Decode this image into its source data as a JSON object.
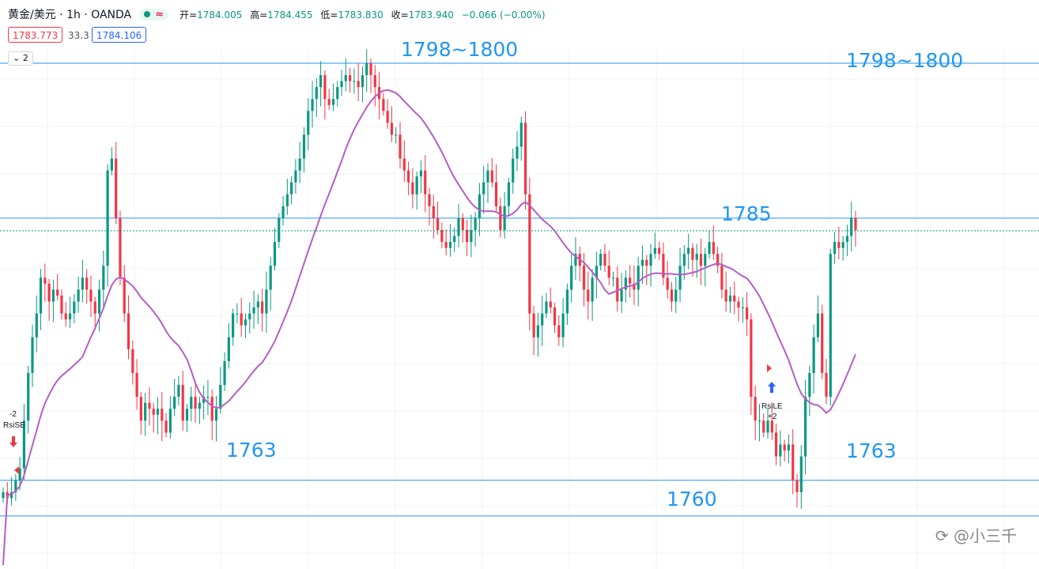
{
  "header": {
    "symbol": "黄金/美元 · 1h · OANDA",
    "wave_icon": "≈",
    "open_label": "开",
    "open": "1784.005",
    "high_label": "高",
    "high": "1784.455",
    "low_label": "低",
    "low": "1783.830",
    "close_label": "收",
    "close": "1783.940",
    "change": "−0.066 (−0.00%)"
  },
  "quote": {
    "sell": "1783.773",
    "spread": "33.3",
    "buy": "1784.106"
  },
  "indicator_toggle": {
    "count": "2"
  },
  "watermark": "@小三千",
  "colors": {
    "up": "#089981",
    "down": "#f23645",
    "ma": "#b45ec6",
    "level": "#2196f3"
  },
  "chart_data": {
    "type": "candlestick",
    "levels": [
      {
        "value": 1798,
        "label": "1798~1800"
      },
      {
        "value": 1785,
        "label": "1785"
      },
      {
        "value": 1763,
        "label": "1763"
      },
      {
        "value": 1760,
        "label": "1760"
      }
    ],
    "annotations": [
      {
        "label": "1798~1800",
        "level": 1798,
        "position": "top-center"
      },
      {
        "label": "1798~1800",
        "level": 1798,
        "position": "top-right"
      },
      {
        "label": "1785",
        "level": 1785,
        "position": "right"
      },
      {
        "label": "1763",
        "level": 1763,
        "position": "left"
      },
      {
        "label": "1763",
        "level": 1763,
        "position": "right"
      },
      {
        "label": "1760",
        "level": 1760,
        "position": "bottom-right"
      }
    ],
    "signals": [
      {
        "label": "RsiSE",
        "qty": "-2",
        "type": "sell"
      },
      {
        "label": "RsiLE",
        "qty": "+2",
        "type": "buy"
      }
    ],
    "last_price": 1783.94,
    "close_series": [
      1762,
      1761.5,
      1762,
      1763,
      1764,
      1768,
      1772,
      1775,
      1777,
      1780,
      1779.5,
      1778,
      1779,
      1778.5,
      1777,
      1776.5,
      1777,
      1778,
      1779,
      1780,
      1779,
      1778,
      1777,
      1779,
      1781,
      1789,
      1790,
      1785,
      1780,
      1777,
      1774,
      1772,
      1770,
      1768,
      1769.5,
      1769,
      1768.5,
      1769,
      1768,
      1767,
      1769,
      1770,
      1771,
      1768,
      1769,
      1770,
      1769,
      1769.5,
      1770,
      1770,
      1768,
      1769,
      1771,
      1773,
      1775,
      1777,
      1777,
      1776,
      1776.5,
      1777,
      1777.5,
      1778,
      1777,
      1779,
      1781,
      1783,
      1785,
      1786,
      1787,
      1788,
      1789,
      1790,
      1792,
      1794,
      1795,
      1796,
      1797,
      1795,
      1794.5,
      1795,
      1796,
      1796.5,
      1797,
      1796.5,
      1796.5,
      1796,
      1797,
      1798,
      1797,
      1796,
      1795,
      1794,
      1793,
      1792,
      1792,
      1790,
      1789,
      1788,
      1787,
      1788.5,
      1789,
      1787,
      1786,
      1785,
      1784,
      1783,
      1782.5,
      1783,
      1783.5,
      1785,
      1784,
      1783,
      1784,
      1785,
      1787,
      1788,
      1789,
      1788,
      1786,
      1784,
      1786,
      1788,
      1790,
      1791,
      1793,
      1787,
      1777,
      1775,
      1776,
      1777,
      1778,
      1777.5,
      1776,
      1775,
      1777,
      1779,
      1781,
      1782,
      1781,
      1779,
      1778,
      1780,
      1781,
      1782,
      1781,
      1780,
      1780,
      1778,
      1779,
      1780,
      1779.5,
      1779,
      1781,
      1781.5,
      1781,
      1782,
      1782.5,
      1782,
      1780,
      1779,
      1778,
      1779,
      1781,
      1782,
      1782.5,
      1781.5,
      1782,
      1781,
      1782,
      1783,
      1782,
      1781,
      1779,
      1778,
      1778.5,
      1778,
      1777.5,
      1777.5,
      1776.5,
      1770,
      1768,
      1768,
      1767,
      1768,
      1767,
      1765,
      1766,
      1765.5,
      1766,
      1763,
      1762,
      1765,
      1770,
      1772,
      1775,
      1777,
      1772,
      1770,
      1782,
      1783,
      1782.5,
      1783,
      1783.5,
      1785,
      1784
    ]
  }
}
